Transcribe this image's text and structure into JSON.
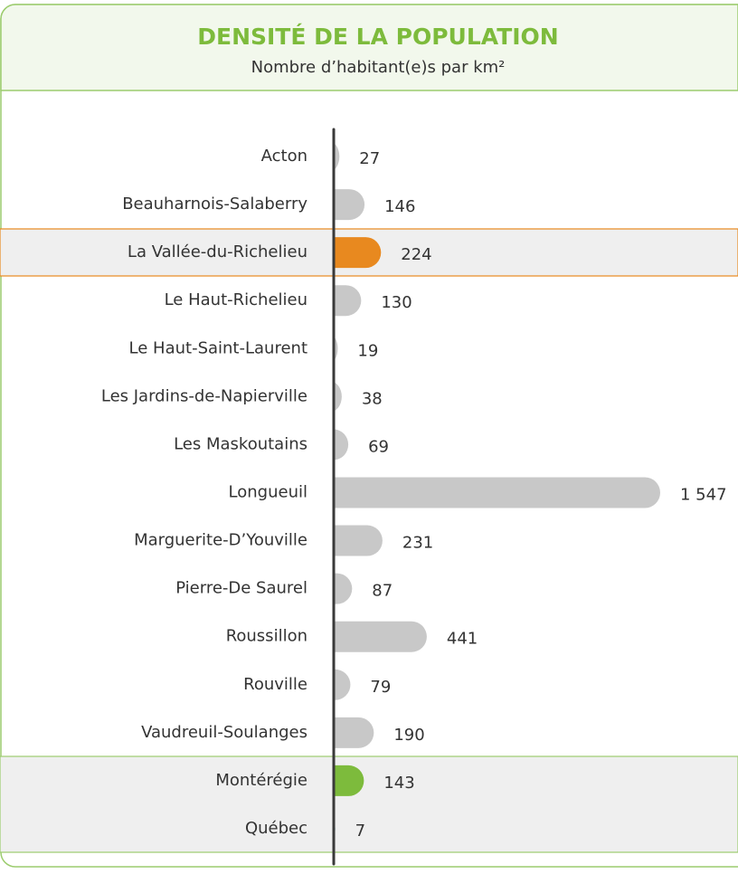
{
  "chart_data": {
    "type": "hbar",
    "title": "DENSITÉ DE LA POPULATION",
    "subtitle": "Nombre d’habitant(e)s par km²",
    "categories": [
      "Acton",
      "Beauharnois-Salaberry",
      "La Vallée-du-Richelieu",
      "Le Haut-Richelieu",
      "Le Haut-Saint-Laurent",
      "Les Jardins-de-Napierville",
      "Les Maskoutains",
      "Longueuil",
      "Marguerite-D’Youville",
      "Pierre-De Saurel",
      "Roussillon",
      "Rouville",
      "Vaudreuil-Soulanges",
      "Montérégie",
      "Québec"
    ],
    "values": [
      27,
      146,
      224,
      130,
      19,
      38,
      69,
      1547,
      231,
      87,
      441,
      79,
      190,
      143,
      7
    ],
    "value_labels": [
      "27",
      "146",
      "224",
      "130",
      "19",
      "38",
      "69",
      "1 547",
      "231",
      "87",
      "441",
      "79",
      "190",
      "143",
      "7"
    ],
    "color": "#c8c8c8",
    "colors": [
      "#c8c8c8",
      "#c8c8c8",
      "#e8891f",
      "#c8c8c8",
      "#c8c8c8",
      "#c8c8c8",
      "#c8c8c8",
      "#c8c8c8",
      "#c8c8c8",
      "#c8c8c8",
      "#c8c8c8",
      "#c8c8c8",
      "#c8c8c8",
      "#7dbb3c",
      "#2a9ab0"
    ]
  }
}
